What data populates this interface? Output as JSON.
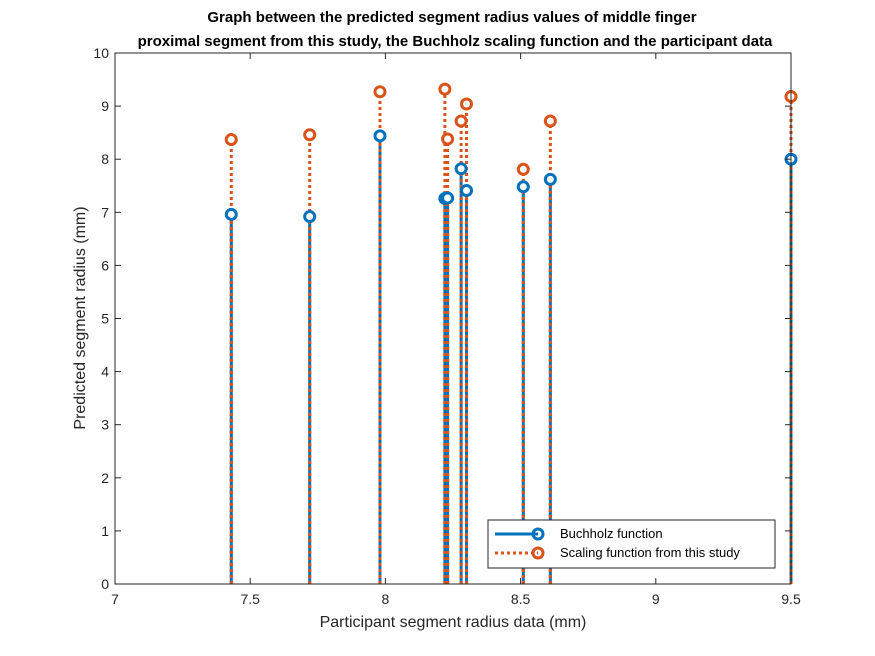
{
  "chart_data": {
    "type": "stem",
    "title": [
      "Graph between the predicted segment radius values of middle finger",
      "proximal segment from this study, the Buchholz scaling function and the participant data"
    ],
    "xlabel": "Participant segment radius data (mm)",
    "ylabel": "Predicted segment radius (mm)",
    "xlim": [
      7,
      9.5
    ],
    "ylim": [
      0,
      10
    ],
    "xticks": [
      7,
      7.5,
      8,
      8.5,
      9,
      9.5
    ],
    "xtick_labels": [
      "7",
      "7.5",
      "8",
      "8.5",
      "9",
      "9.5"
    ],
    "yticks": [
      0,
      1,
      2,
      3,
      4,
      5,
      6,
      7,
      8,
      9,
      10
    ],
    "ytick_labels": [
      "0",
      "1",
      "2",
      "3",
      "4",
      "5",
      "6",
      "7",
      "8",
      "9",
      "10"
    ],
    "grid": false,
    "legend_position": "bottom-right",
    "x": [
      7.43,
      7.72,
      7.98,
      8.22,
      8.23,
      8.28,
      8.3,
      8.51,
      8.61,
      9.5
    ],
    "series": [
      {
        "name": "Buchholz function",
        "color": "#0072BD",
        "line_style": "solid",
        "values": [
          6.96,
          6.92,
          8.44,
          7.26,
          7.27,
          7.82,
          7.41,
          7.48,
          7.62,
          8.0
        ]
      },
      {
        "name": "Scaling function from this study",
        "color": "#D95319",
        "line_style": "dotted",
        "values": [
          8.37,
          8.46,
          9.27,
          9.32,
          8.38,
          8.72,
          9.04,
          7.81,
          8.72,
          9.18
        ]
      }
    ]
  }
}
